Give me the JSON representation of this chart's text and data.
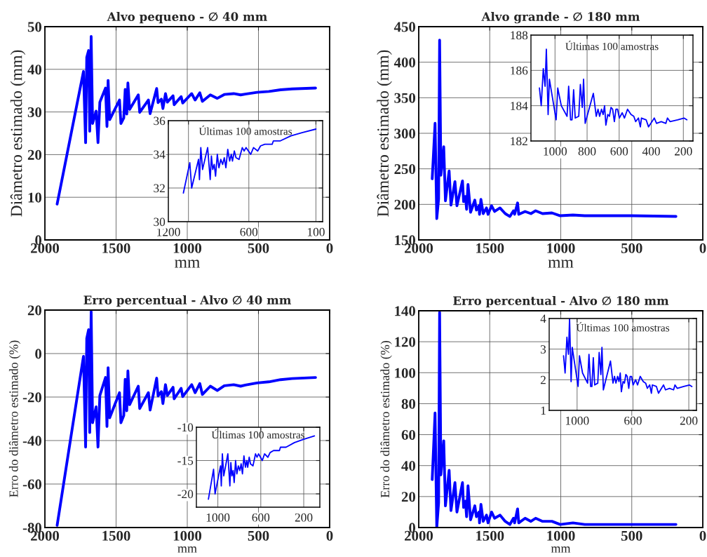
{
  "chart_data": [
    {
      "type": "line",
      "title": "Alvo pequeno - ∅ 40 mm",
      "xlabel": "mm",
      "ylabel": "Diâmetro estimado (mm)",
      "xlim": [
        2000,
        0
      ],
      "xticks": [
        2000,
        1500,
        1000,
        500,
        0
      ],
      "ylim": [
        0,
        50
      ],
      "yticks": [
        0,
        10,
        20,
        30,
        40,
        50
      ],
      "grid": true,
      "series": [
        {
          "color": "#0000ff",
          "x": [
            1914,
            1729,
            1714,
            1706,
            1693,
            1685,
            1675,
            1665,
            1640,
            1627,
            1614,
            1574,
            1564,
            1556,
            1545,
            1476,
            1466,
            1446,
            1436,
            1425,
            1417,
            1405,
            1344,
            1334,
            1273,
            1261,
            1215,
            1205,
            1182,
            1171,
            1153,
            1140,
            1100,
            1092,
            1043,
            1032,
            969,
            945,
            912,
            894,
            838,
            789,
            740,
            674,
            625,
            592,
            510,
            427,
            345,
            263,
            99
          ],
          "values": [
            8.4,
            39.5,
            22.8,
            42.8,
            44.4,
            25.5,
            47.7,
            27.3,
            30.2,
            22.8,
            32.3,
            35.6,
            26.6,
            37.4,
            28.2,
            32.8,
            27.3,
            28.6,
            35.3,
            29.5,
            36.8,
            30.6,
            34.0,
            29.9,
            32.8,
            29.6,
            35.5,
            32.2,
            33.0,
            30.8,
            34.3,
            32.3,
            33.8,
            31.7,
            33.6,
            32.1,
            34.3,
            32.8,
            34.5,
            32.5,
            34.0,
            33.2,
            34.1,
            34.3,
            34.0,
            34.2,
            34.6,
            34.8,
            35.2,
            35.4,
            35.6
          ]
        }
      ]
    },
    {
      "type": "line",
      "title": "Últimas 100 amostras",
      "xlim": [
        1200,
        50
      ],
      "xticks": [
        1200,
        {
          "value": 1050,
          "label": null
        },
        600,
        100
      ],
      "ylim": [
        30,
        36
      ],
      "yticks": [
        30,
        32,
        34,
        36
      ],
      "grid": true,
      "series": [
        {
          "color": "#0000ff",
          "x": [
            1088,
            1040,
            1026,
            975,
            968,
            958,
            945,
            907,
            888,
            879,
            869,
            858,
            848,
            835,
            823,
            809,
            795,
            783,
            771,
            757,
            743,
            731,
            722,
            708,
            696,
            673,
            649,
            635,
            621,
            603,
            586,
            565,
            534,
            513,
            481,
            426,
            417,
            365,
            286,
            199,
            100
          ],
          "values": [
            31.7,
            33.5,
            32.0,
            33.7,
            32.5,
            34.4,
            33.1,
            34.4,
            32.5,
            33.9,
            33.1,
            33.4,
            32.7,
            34.0,
            33.2,
            33.7,
            33.4,
            33.8,
            33.2,
            34.3,
            33.6,
            34.0,
            33.6,
            34.2,
            33.8,
            33.7,
            34.4,
            34.2,
            34.4,
            34.2,
            34.0,
            34.4,
            34.2,
            34.5,
            34.6,
            34.6,
            34.8,
            34.8,
            35.1,
            35.3,
            35.5
          ]
        }
      ]
    },
    {
      "type": "line",
      "title": "Alvo grande - ∅ 180 mm",
      "xlabel": "mm",
      "ylabel": "Diâmetro estimado (mm)",
      "xlim": [
        2000,
        0
      ],
      "xticks": [
        2000,
        1500,
        1000,
        500,
        0
      ],
      "ylim": [
        150,
        450
      ],
      "yticks": [
        150,
        200,
        250,
        300,
        350,
        400,
        450
      ],
      "grid": true,
      "series": [
        {
          "color": "#0000ff",
          "x": [
            1905,
            1885,
            1873,
            1860,
            1853,
            1844,
            1824,
            1812,
            1786,
            1773,
            1745,
            1731,
            1692,
            1684,
            1671,
            1663,
            1653,
            1635,
            1605,
            1594,
            1576,
            1572,
            1562,
            1546,
            1523,
            1512,
            1487,
            1466,
            1428,
            1391,
            1358,
            1333,
            1325,
            1304,
            1296,
            1251,
            1210,
            1177,
            1128,
            1062,
            1004,
            914,
            831,
            749,
            502,
            189
          ],
          "values": [
            236,
            314,
            180,
            208,
            431,
            241,
            281,
            205,
            247,
            199,
            232,
            198,
            233,
            204,
            211,
            193,
            228,
            189,
            206,
            192,
            198,
            186,
            207,
            187,
            195,
            186,
            198,
            190,
            195,
            187,
            183,
            191,
            186,
            202,
            186,
            190,
            187,
            191,
            187,
            188,
            184,
            185,
            184,
            184,
            184,
            183
          ]
        }
      ]
    },
    {
      "type": "line",
      "title": "Últimas 100 amostras",
      "xlim": [
        1150,
        140
      ],
      "xticks": [
        1000,
        800,
        600,
        400,
        200
      ],
      "ylim": [
        182,
        188
      ],
      "yticks": [
        182,
        184,
        186,
        188
      ],
      "grid": true,
      "series": [
        {
          "color": "#0000ff",
          "x": [
            1097,
            1086,
            1073,
            1062,
            1054,
            1043,
            1035,
            993,
            983,
            961,
            925,
            915,
            903,
            894,
            884,
            874,
            852,
            842,
            830,
            822,
            812,
            761,
            743,
            732,
            722,
            710,
            700,
            691,
            683,
            671,
            661,
            651,
            641,
            630,
            620,
            610,
            599,
            581,
            567,
            548,
            526,
            509,
            497,
            480,
            468,
            461,
            432,
            417,
            381,
            367,
            338,
            309,
            299,
            283,
            236,
            196,
            178
          ],
          "values": [
            185.0,
            184.0,
            186.1,
            185.1,
            187.2,
            183.5,
            185.5,
            183.2,
            185.0,
            184.0,
            183.4,
            185.1,
            183.2,
            183.2,
            184.9,
            183.3,
            183.4,
            185.2,
            183.9,
            185.5,
            183.0,
            184.7,
            183.4,
            183.8,
            183.4,
            183.8,
            183.5,
            184.0,
            182.9,
            183.5,
            183.4,
            183.9,
            183.8,
            183.1,
            183.8,
            183.8,
            183.3,
            183.6,
            183.3,
            183.8,
            183.5,
            183.4,
            183.1,
            183.3,
            182.8,
            183.3,
            183.2,
            182.8,
            183.3,
            183.0,
            183.1,
            183.0,
            183.3,
            183.1,
            183.2,
            183.3,
            183.2
          ]
        }
      ]
    },
    {
      "type": "line",
      "title": "Erro percentual - Alvo ∅ 40 mm",
      "xlabel": "mm",
      "ylabel": "Erro do diâmetro estimado (%)",
      "xlim": [
        2000,
        0
      ],
      "xticks": [
        2000,
        1500,
        1000,
        500,
        0
      ],
      "ylim": [
        -80,
        20
      ],
      "yticks": [
        -80,
        -60,
        -40,
        -20,
        0,
        20
      ],
      "grid": true,
      "series": [
        {
          "color": "#0000ff",
          "x": [
            1914,
            1729,
            1714,
            1706,
            1693,
            1685,
            1675,
            1665,
            1640,
            1627,
            1614,
            1574,
            1564,
            1556,
            1545,
            1476,
            1466,
            1446,
            1436,
            1425,
            1417,
            1405,
            1344,
            1334,
            1273,
            1261,
            1215,
            1205,
            1182,
            1171,
            1153,
            1140,
            1100,
            1092,
            1043,
            1032,
            969,
            945,
            912,
            894,
            838,
            789,
            740,
            674,
            625,
            592,
            510,
            427,
            345,
            263,
            99
          ],
          "values": [
            -79,
            -1.3,
            -43,
            7,
            11,
            -36.3,
            19.3,
            -31.8,
            -24.5,
            -43,
            -19.3,
            -11,
            -33.5,
            -6.5,
            -29.5,
            -18,
            -31.8,
            -28.5,
            -11.8,
            -26.3,
            -8,
            -23.5,
            -15,
            -25.3,
            -18,
            -26,
            -11.3,
            -19.5,
            -17.5,
            -23,
            -14.3,
            -19.3,
            -15.5,
            -20.8,
            -16,
            -19.8,
            -14.3,
            -18,
            -13.8,
            -18.8,
            -15,
            -17,
            -14.8,
            -14.3,
            -15,
            -14.5,
            -13.5,
            -13,
            -12,
            -11.5,
            -11
          ]
        }
      ]
    },
    {
      "type": "line",
      "title": "Últimas 100 amostras",
      "xlim": [
        1200,
        50
      ],
      "xticks": [
        1000,
        600,
        200
      ],
      "ylim": [
        -22,
        -10
      ],
      "yticks": [
        -20,
        -15,
        -10
      ],
      "grid": true,
      "series": [
        {
          "color": "#0000ff",
          "x": [
            1088,
            1040,
            1026,
            975,
            968,
            958,
            945,
            907,
            888,
            879,
            869,
            858,
            848,
            835,
            823,
            809,
            795,
            783,
            771,
            757,
            743,
            731,
            722,
            708,
            696,
            673,
            649,
            635,
            621,
            603,
            586,
            565,
            534,
            513,
            481,
            426,
            417,
            365,
            286,
            199,
            100
          ],
          "values": [
            -20.8,
            -16.3,
            -20,
            -15.8,
            -18.8,
            -14,
            -17.3,
            -14,
            -18.8,
            -15.3,
            -17.3,
            -16.5,
            -18.3,
            -15,
            -17,
            -15.8,
            -16.5,
            -15.5,
            -17,
            -14.3,
            -16,
            -15,
            -16,
            -14.5,
            -15.5,
            -15.8,
            -14,
            -14.5,
            -14,
            -14.5,
            -15,
            -14,
            -14.5,
            -13.8,
            -13.5,
            -13.5,
            -13,
            -13,
            -12.3,
            -11.8,
            -11.3
          ]
        }
      ]
    },
    {
      "type": "line",
      "title": "Erro percentual - Alvo ∅ 180 mm",
      "xlabel": "mm",
      "ylabel": "Erro do diâmetro estimado (%)",
      "xlim": [
        2000,
        0
      ],
      "xticks": [
        2000,
        1500,
        1000,
        500,
        0
      ],
      "ylim": [
        0,
        140
      ],
      "yticks": [
        0,
        20,
        40,
        60,
        80,
        100,
        120,
        140
      ],
      "grid": true,
      "series": [
        {
          "color": "#0000ff",
          "x": [
            1905,
            1885,
            1873,
            1860,
            1853,
            1844,
            1824,
            1812,
            1786,
            1773,
            1745,
            1731,
            1692,
            1684,
            1671,
            1663,
            1653,
            1635,
            1605,
            1594,
            1576,
            1572,
            1562,
            1546,
            1523,
            1512,
            1487,
            1466,
            1428,
            1391,
            1358,
            1333,
            1325,
            1304,
            1296,
            1251,
            1210,
            1177,
            1128,
            1062,
            1004,
            914,
            831,
            749,
            502,
            189
          ],
          "values": [
            31,
            74,
            0,
            16,
            139,
            34,
            56,
            14,
            37,
            11,
            29,
            10,
            29,
            13,
            17,
            7,
            27,
            5,
            14,
            7,
            10,
            3,
            15,
            4,
            8,
            3,
            10,
            6,
            8,
            4,
            2,
            6,
            3,
            12,
            3,
            6,
            4,
            6,
            4,
            4,
            2,
            3,
            2,
            2,
            2,
            2
          ]
        }
      ]
    },
    {
      "type": "line",
      "title": "Últimas 100 amostras",
      "xlim": [
        1200,
        145
      ],
      "xticks": [
        1000,
        600,
        200
      ],
      "ylim": [
        1,
        4
      ],
      "yticks": [
        1,
        2,
        3,
        4
      ],
      "grid": true,
      "series": [
        {
          "color": "#0000ff",
          "x": [
            1097,
            1086,
            1073,
            1062,
            1054,
            1043,
            1035,
            993,
            983,
            961,
            925,
            915,
            903,
            894,
            884,
            874,
            852,
            842,
            830,
            822,
            812,
            761,
            743,
            732,
            722,
            710,
            700,
            691,
            683,
            671,
            661,
            651,
            641,
            630,
            620,
            610,
            599,
            581,
            567,
            548,
            526,
            509,
            497,
            480,
            468,
            461,
            432,
            417,
            381,
            367,
            338,
            309,
            299,
            283,
            236,
            196,
            178
          ],
          "values": [
            2.78,
            2.22,
            3.39,
            2.83,
            4.0,
            1.94,
            3.06,
            1.78,
            2.78,
            2.22,
            1.89,
            2.83,
            1.78,
            1.78,
            2.72,
            1.83,
            1.89,
            2.89,
            2.17,
            3.06,
            1.67,
            2.61,
            1.89,
            2.11,
            1.89,
            2.11,
            1.94,
            2.22,
            1.61,
            1.94,
            1.89,
            2.17,
            2.11,
            1.72,
            2.11,
            2.11,
            1.83,
            2.0,
            1.83,
            2.11,
            1.94,
            1.89,
            1.72,
            1.83,
            1.56,
            1.83,
            1.78,
            1.56,
            1.83,
            1.67,
            1.72,
            1.67,
            1.83,
            1.72,
            1.78,
            1.83,
            1.78
          ]
        }
      ]
    }
  ]
}
